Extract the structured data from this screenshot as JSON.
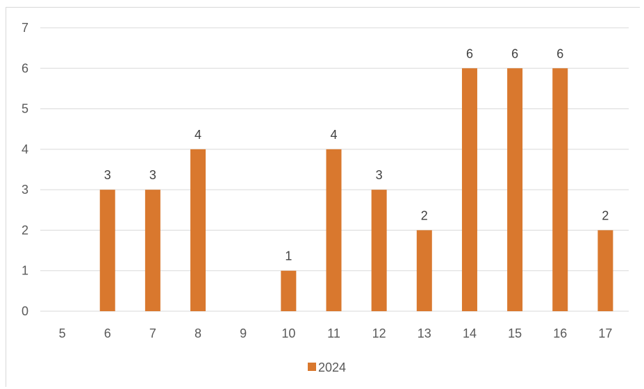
{
  "chart_data": {
    "type": "bar",
    "categories": [
      "5",
      "6",
      "7",
      "8",
      "9",
      "10",
      "11",
      "12",
      "13",
      "14",
      "15",
      "16",
      "17"
    ],
    "series": [
      {
        "name": "2024",
        "values": [
          0,
          3,
          3,
          4,
          0,
          1,
          4,
          3,
          2,
          6,
          6,
          6,
          2
        ],
        "color": "#d9782e"
      }
    ],
    "data_labels": [
      "",
      "3",
      "3",
      "4",
      "",
      "1",
      "4",
      "3",
      "2",
      "6",
      "6",
      "6",
      "2"
    ],
    "y_ticks": [
      "0",
      "1",
      "2",
      "3",
      "4",
      "5",
      "6",
      "7"
    ],
    "ylim": [
      0,
      7
    ],
    "grid": true,
    "legend_position": "bottom",
    "title": "",
    "xlabel": "",
    "ylabel": ""
  }
}
